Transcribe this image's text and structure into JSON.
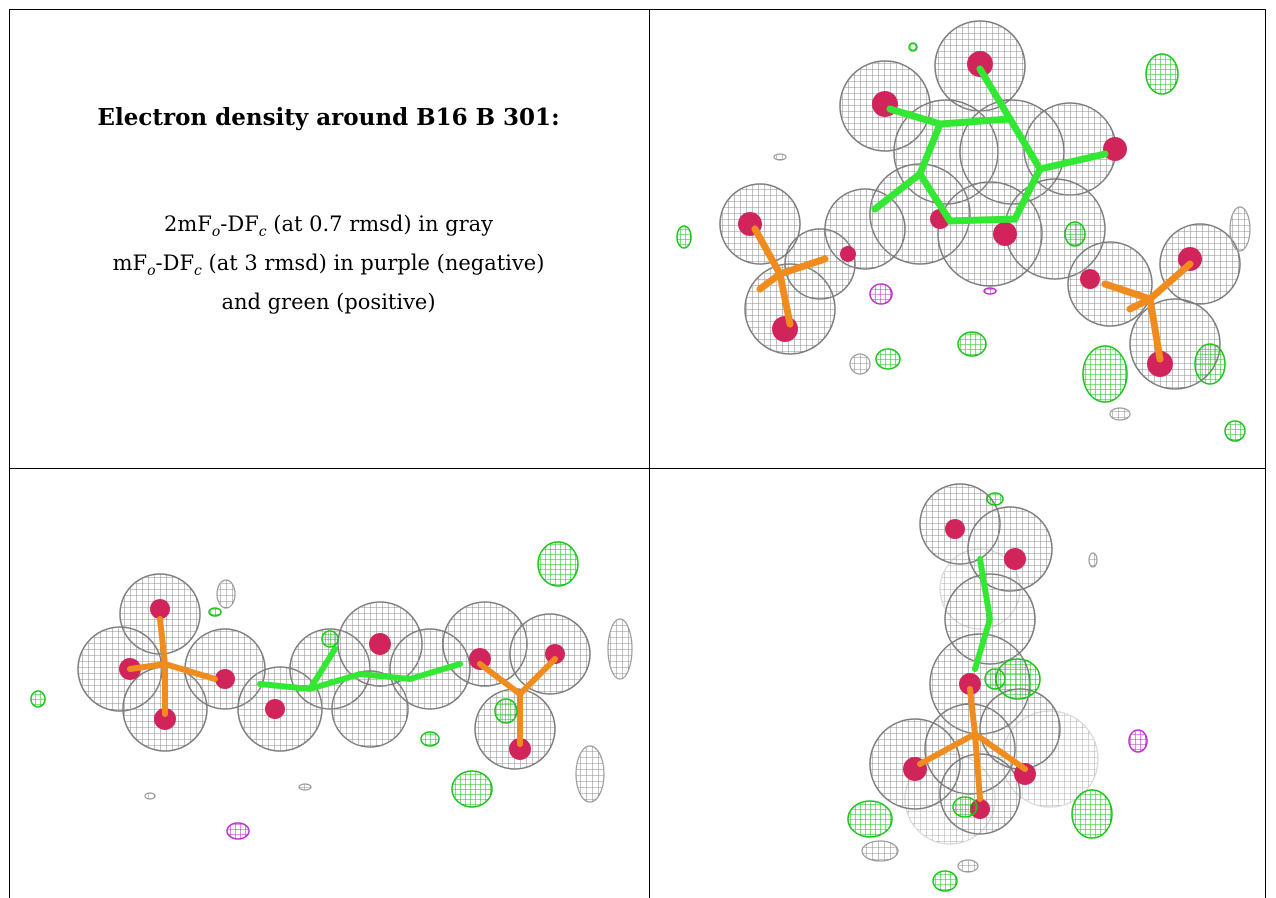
{
  "caption": {
    "title": "Electron density around B16 B 301:",
    "line1_pre": "2mF",
    "line1_sub1": "o",
    "line1_mid": "-DF",
    "line1_sub2": "c",
    "line1_post": " (at 0.7 rmsd) in gray",
    "line2_pre": "mF",
    "line2_sub1": "o",
    "line2_mid": "-DF",
    "line2_sub2": "c",
    "line2_post": " (at 3 rmsd) in purple (negative)",
    "line3": "and green (positive)"
  },
  "colors": {
    "mesh_gray": "#a9a9a9",
    "mesh_gray_light": "#d9d9d9",
    "atom_oxygen": "#d0245a",
    "atom_phosphorus": "#f08c1e",
    "positive_green": "#33e833",
    "negative_purple": "#c22bd0",
    "border": "#000000"
  },
  "panels": [
    {
      "name": "top-right-view",
      "icon": "electron-density-mesh-icon"
    },
    {
      "name": "bottom-left-view",
      "icon": "electron-density-mesh-icon"
    },
    {
      "name": "bottom-right-view",
      "icon": "electron-density-mesh-icon"
    }
  ]
}
